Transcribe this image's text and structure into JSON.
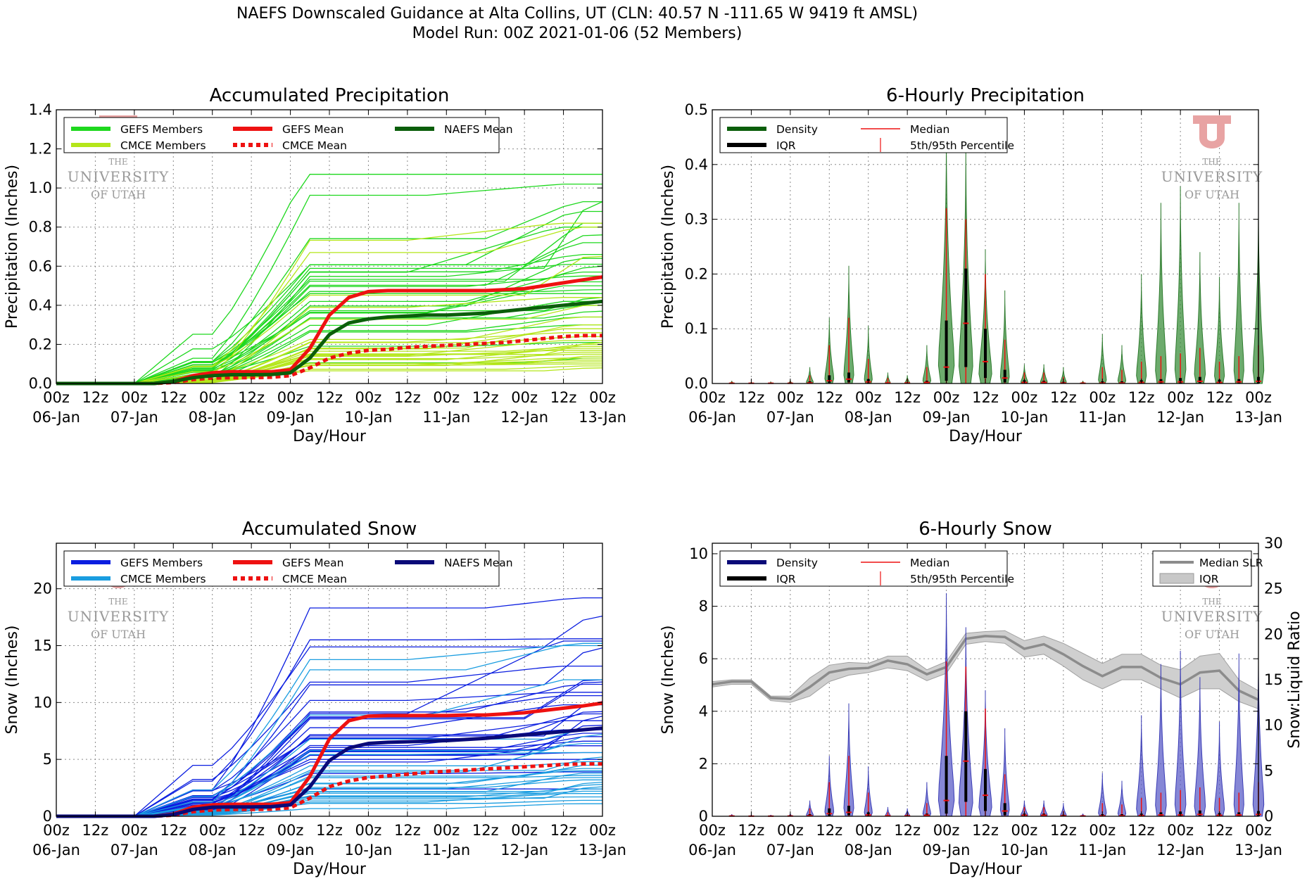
{
  "suptitle": {
    "line1": "NAEFS Downscaled Guidance at Alta Collins, UT (CLN: 40.57 N -111.65 W 9419 ft AMSL)",
    "line2": "Model Run: 00Z 2021-01-06 (52 Members)"
  },
  "watermark": {
    "line1": "THE",
    "line2": "UNIVERSITY",
    "line3": "OF UTAH"
  },
  "time_axis": {
    "hour_labels": [
      "00z",
      "12z",
      "00z",
      "12z",
      "00z",
      "12z",
      "00z",
      "12z",
      "00z",
      "12z",
      "00z",
      "12z",
      "00z",
      "12z",
      "00z"
    ],
    "day_labels": [
      "06-Jan",
      "",
      "07-Jan",
      "",
      "08-Jan",
      "",
      "09-Jan",
      "",
      "10-Jan",
      "",
      "11-Jan",
      "",
      "12-Jan",
      "",
      "13-Jan"
    ],
    "xlabel": "Day/Hour"
  },
  "colors": {
    "gefs_precip": "#1ed81e",
    "cmce_precip": "#b4e61a",
    "naefs_precip": "#0b5e0b",
    "gefs_snow": "#0b1ee0",
    "cmce_snow": "#1a9de0",
    "naefs_snow": "#0a0a78",
    "gefs_mean": "#ee1111",
    "violin_green": "#3c8f3c",
    "violin_blue": "#5d5fc8",
    "slr": "#8c8c8c"
  },
  "chart_data": [
    {
      "id": "acc_precip",
      "type": "line",
      "title": "Accumulated Precipitation",
      "xlabel": "Day/Hour",
      "ylabel": "Precipitation (Inches)",
      "ylim": [
        0,
        1.4
      ],
      "yticks": [
        "0.0",
        "0.2",
        "0.4",
        "0.6",
        "0.8",
        "1.0",
        "1.2",
        "1.4"
      ],
      "x_hours": [
        0,
        6,
        12,
        18,
        24,
        30,
        36,
        42,
        48,
        54,
        60,
        66,
        72,
        78,
        84,
        90,
        96,
        102,
        108,
        114,
        120,
        126,
        132,
        138,
        144,
        150,
        156,
        162,
        168
      ],
      "legend": [
        {
          "label": "GEFS Members",
          "color": "#1ed81e",
          "style": "solid"
        },
        {
          "label": "CMCE Members",
          "color": "#b4e61a",
          "style": "solid"
        },
        {
          "label": "GEFS Mean",
          "color": "#ee1111",
          "style": "solid"
        },
        {
          "label": "CMCE Mean",
          "color": "#ee1111",
          "style": "dotted"
        },
        {
          "label": "NAEFS Mean",
          "color": "#0b5e0b",
          "style": "solid"
        }
      ],
      "series": [
        {
          "name": "GEFS Mean",
          "style": "mean",
          "color": "#ee1111",
          "values": [
            0,
            0,
            0,
            0,
            0,
            0,
            0.01,
            0.04,
            0.055,
            0.06,
            0.06,
            0.06,
            0.07,
            0.18,
            0.35,
            0.44,
            0.47,
            0.475,
            0.475,
            0.475,
            0.475,
            0.475,
            0.475,
            0.48,
            0.485,
            0.5,
            0.515,
            0.53,
            0.545
          ]
        },
        {
          "name": "CMCE Mean",
          "style": "dotted",
          "color": "#ee1111",
          "values": [
            0,
            0,
            0,
            0,
            0,
            0,
            0.005,
            0.02,
            0.028,
            0.03,
            0.03,
            0.032,
            0.04,
            0.08,
            0.13,
            0.155,
            0.17,
            0.175,
            0.185,
            0.19,
            0.195,
            0.2,
            0.205,
            0.21,
            0.22,
            0.23,
            0.24,
            0.245,
            0.245
          ]
        },
        {
          "name": "NAEFS Mean",
          "style": "mean",
          "color": "#0b5e0b",
          "values": [
            0,
            0,
            0,
            0,
            0,
            0,
            0.01,
            0.03,
            0.04,
            0.045,
            0.045,
            0.046,
            0.055,
            0.13,
            0.25,
            0.31,
            0.33,
            0.34,
            0.345,
            0.35,
            0.35,
            0.355,
            0.36,
            0.37,
            0.38,
            0.39,
            0.4,
            0.41,
            0.42
          ]
        }
      ],
      "member_groups": [
        {
          "style": "gefs",
          "color": "#1ed81e",
          "finals": [
            1.07,
            1.02,
            0.93,
            0.93,
            0.88,
            0.82,
            0.8,
            0.76,
            0.72,
            0.66,
            0.64,
            0.61,
            0.6,
            0.57,
            0.55,
            0.52,
            0.5,
            0.48,
            0.46,
            0.44,
            0.42,
            0.4,
            0.37,
            0.34,
            0.3,
            0.21,
            0.13
          ]
        },
        {
          "style": "cmce",
          "color": "#b4e61a",
          "finals": [
            0.82,
            0.8,
            0.65,
            0.44,
            0.4,
            0.34,
            0.3,
            0.28,
            0.26,
            0.24,
            0.22,
            0.21,
            0.2,
            0.19,
            0.18,
            0.17,
            0.16,
            0.15,
            0.14,
            0.13,
            0.12,
            0.11,
            0.1,
            0.09,
            0.08
          ]
        }
      ]
    },
    {
      "id": "six_precip",
      "type": "violin",
      "title": "6-Hourly Precipitation",
      "xlabel": "Day/Hour",
      "ylabel": "Precipitation (Inches)",
      "ylim": [
        0,
        0.5
      ],
      "yticks": [
        "0.0",
        "0.1",
        "0.2",
        "0.3",
        "0.4",
        "0.5"
      ],
      "legend": [
        {
          "label": "Density",
          "color": "#0b5e0b",
          "style": "thick"
        },
        {
          "label": "IQR",
          "color": "#000000",
          "style": "thick"
        },
        {
          "label": "Median",
          "color": "#ee1111",
          "style": "thin"
        },
        {
          "label": "5th/95th Percentile",
          "color": "#ee1111",
          "style": "vertical"
        }
      ],
      "x_hours": [
        6,
        12,
        18,
        24,
        30,
        36,
        42,
        48,
        54,
        60,
        66,
        72,
        78,
        84,
        90,
        96,
        102,
        108,
        114,
        120,
        126,
        132,
        138,
        144,
        150,
        156,
        162,
        168
      ],
      "max": [
        0.005,
        0.003,
        0.003,
        0.006,
        0.03,
        0.12,
        0.215,
        0.105,
        0.02,
        0.015,
        0.07,
        0.46,
        0.44,
        0.245,
        0.17,
        0.035,
        0.035,
        0.03,
        0.005,
        0.09,
        0.07,
        0.2,
        0.33,
        0.36,
        0.24,
        0.195,
        0.33,
        0.33
      ],
      "p95": [
        0.003,
        0.002,
        0.002,
        0.004,
        0.015,
        0.07,
        0.12,
        0.045,
        0.01,
        0.008,
        0.03,
        0.32,
        0.3,
        0.2,
        0.08,
        0.02,
        0.02,
        0.012,
        0.003,
        0.03,
        0.025,
        0.04,
        0.05,
        0.055,
        0.065,
        0.04,
        0.05,
        0.07
      ],
      "q3": [
        0.001,
        0.001,
        0.001,
        0.001,
        0.004,
        0.015,
        0.02,
        0.008,
        0.002,
        0.002,
        0.005,
        0.115,
        0.21,
        0.1,
        0.025,
        0.006,
        0.005,
        0.003,
        0.001,
        0.004,
        0.004,
        0.006,
        0.008,
        0.01,
        0.012,
        0.007,
        0.008,
        0.012
      ],
      "median": [
        0.0005,
        0.0005,
        0.0005,
        0.0005,
        0.001,
        0.005,
        0.008,
        0.003,
        0.001,
        0.001,
        0.002,
        0.03,
        0.11,
        0.04,
        0.01,
        0.002,
        0.002,
        0.001,
        0.0005,
        0.001,
        0.001,
        0.002,
        0.003,
        0.003,
        0.004,
        0.002,
        0.003,
        0.004
      ],
      "q1": [
        0,
        0,
        0,
        0,
        0,
        0.001,
        0.002,
        0,
        0,
        0,
        0,
        0.005,
        0.03,
        0.01,
        0.002,
        0,
        0,
        0,
        0,
        0,
        0,
        0,
        0,
        0,
        0.001,
        0,
        0,
        0
      ],
      "width": [
        0.2,
        0.2,
        0.2,
        0.2,
        0.35,
        0.45,
        0.5,
        0.4,
        0.25,
        0.25,
        0.4,
        0.8,
        0.7,
        0.65,
        0.45,
        0.35,
        0.35,
        0.3,
        0.2,
        0.4,
        0.4,
        0.5,
        0.55,
        0.55,
        0.55,
        0.5,
        0.5,
        0.55
      ]
    },
    {
      "id": "acc_snow",
      "type": "line",
      "title": "Accumulated Snow",
      "xlabel": "Day/Hour",
      "ylabel": "Snow (Inches)",
      "ylim": [
        0,
        24
      ],
      "yticks": [
        "0",
        "5",
        "10",
        "15",
        "20"
      ],
      "ytick_values": [
        0,
        5,
        10,
        15,
        20
      ],
      "x_hours": [
        0,
        6,
        12,
        18,
        24,
        30,
        36,
        42,
        48,
        54,
        60,
        66,
        72,
        78,
        84,
        90,
        96,
        102,
        108,
        114,
        120,
        126,
        132,
        138,
        144,
        150,
        156,
        162,
        168
      ],
      "legend": [
        {
          "label": "GEFS Members",
          "color": "#0b1ee0",
          "style": "solid"
        },
        {
          "label": "CMCE Members",
          "color": "#1a9de0",
          "style": "solid"
        },
        {
          "label": "GEFS Mean",
          "color": "#ee1111",
          "style": "solid"
        },
        {
          "label": "CMCE Mean",
          "color": "#ee1111",
          "style": "dotted"
        },
        {
          "label": "NAEFS Mean",
          "color": "#0a0a78",
          "style": "solid"
        }
      ],
      "series": [
        {
          "name": "GEFS Mean",
          "style": "mean",
          "color": "#ee1111",
          "values": [
            0,
            0,
            0,
            0,
            0,
            0,
            0.2,
            0.8,
            1.0,
            1.05,
            1.05,
            1.05,
            1.2,
            3.5,
            6.8,
            8.4,
            8.8,
            8.85,
            8.85,
            8.85,
            8.85,
            8.9,
            8.9,
            9.0,
            9.1,
            9.3,
            9.5,
            9.7,
            9.95
          ]
        },
        {
          "name": "CMCE Mean",
          "style": "dotted",
          "color": "#ee1111",
          "values": [
            0,
            0,
            0,
            0,
            0,
            0,
            0.1,
            0.4,
            0.55,
            0.6,
            0.6,
            0.62,
            0.75,
            1.6,
            2.6,
            3.1,
            3.4,
            3.55,
            3.7,
            3.85,
            3.95,
            4.05,
            4.15,
            4.25,
            4.35,
            4.45,
            4.55,
            4.6,
            4.6
          ]
        },
        {
          "name": "NAEFS Mean",
          "style": "mean",
          "color": "#0a0a78",
          "values": [
            0,
            0,
            0,
            0,
            0,
            0,
            0.15,
            0.6,
            0.8,
            0.82,
            0.82,
            0.84,
            1.0,
            2.6,
            4.9,
            6.0,
            6.4,
            6.5,
            6.55,
            6.6,
            6.65,
            6.75,
            6.85,
            7.0,
            7.15,
            7.3,
            7.45,
            7.6,
            7.75
          ]
        }
      ],
      "member_groups": [
        {
          "style": "gefs",
          "color": "#0b1ee0",
          "finals": [
            19.2,
            17.6,
            15.6,
            15.4,
            14.8,
            13.2,
            12.0,
            11.8,
            11.6,
            10.9,
            10.6,
            10.1,
            9.8,
            9.2,
            9.0,
            8.8,
            8.4,
            8.0,
            7.6,
            7.3,
            7.0,
            6.6,
            6.2,
            5.6,
            5.0,
            3.9,
            2.4
          ]
        },
        {
          "style": "cmce",
          "color": "#1a9de0",
          "finals": [
            15.2,
            15.0,
            12.0,
            7.8,
            7.2,
            6.4,
            5.6,
            5.2,
            4.8,
            4.5,
            4.2,
            4.0,
            3.8,
            3.6,
            3.4,
            3.2,
            3.0,
            2.8,
            2.6,
            2.4,
            2.2,
            2.0,
            1.7,
            1.4,
            1.1
          ]
        }
      ]
    },
    {
      "id": "six_snow",
      "type": "violin",
      "title": "6-Hourly Snow",
      "xlabel": "Day/Hour",
      "ylabel": "Snow (Inches)",
      "ylabel_right": "Snow:Liquid Ratio",
      "ylim": [
        0,
        10.4
      ],
      "yticks": [
        "0",
        "2",
        "4",
        "6",
        "8",
        "10"
      ],
      "ytick_values": [
        0,
        2,
        4,
        6,
        8,
        10
      ],
      "ylim_right": [
        0,
        30
      ],
      "yticks_right": [
        "0",
        "5",
        "10",
        "15",
        "20",
        "25",
        "30"
      ],
      "legend": [
        {
          "label": "Density",
          "color": "#0a0a78",
          "style": "thick"
        },
        {
          "label": "IQR",
          "color": "#000000",
          "style": "thick"
        },
        {
          "label": "Median",
          "color": "#ee1111",
          "style": "thin"
        },
        {
          "label": "5th/95th Percentile",
          "color": "#ee1111",
          "style": "vertical"
        }
      ],
      "legend_right": [
        {
          "label": "Median SLR",
          "color": "#8c8c8c",
          "style": "thick"
        },
        {
          "label": "IQR",
          "color": "#c8c8c8",
          "style": "band"
        }
      ],
      "x_hours": [
        6,
        12,
        18,
        24,
        30,
        36,
        42,
        48,
        54,
        60,
        66,
        72,
        78,
        84,
        90,
        96,
        102,
        108,
        114,
        120,
        126,
        132,
        138,
        144,
        150,
        156,
        162,
        168
      ],
      "max": [
        0.08,
        0.05,
        0.05,
        0.1,
        0.6,
        2.3,
        4.3,
        1.9,
        0.35,
        0.3,
        1.3,
        8.5,
        7.2,
        4.8,
        3.35,
        0.6,
        0.6,
        0.5,
        0.1,
        1.65,
        1.35,
        3.85,
        5.8,
        6.3,
        5.3,
        3.6,
        6.2,
        6.2
      ],
      "p95": [
        0.05,
        0.03,
        0.03,
        0.06,
        0.3,
        1.3,
        2.3,
        0.9,
        0.15,
        0.12,
        0.5,
        5.9,
        5.7,
        4.1,
        1.6,
        0.35,
        0.35,
        0.2,
        0.05,
        0.5,
        0.45,
        0.7,
        0.9,
        1.0,
        1.1,
        0.7,
        0.9,
        1.3
      ],
      "q3": [
        0.02,
        0.01,
        0.01,
        0.02,
        0.08,
        0.3,
        0.4,
        0.15,
        0.04,
        0.04,
        0.1,
        2.3,
        4.0,
        1.8,
        0.5,
        0.1,
        0.1,
        0.06,
        0.02,
        0.08,
        0.08,
        0.1,
        0.15,
        0.18,
        0.22,
        0.12,
        0.15,
        0.2
      ],
      "median": [
        0.01,
        0.005,
        0.005,
        0.01,
        0.02,
        0.1,
        0.15,
        0.05,
        0.02,
        0.02,
        0.04,
        0.6,
        2.1,
        0.8,
        0.2,
        0.04,
        0.04,
        0.02,
        0.01,
        0.02,
        0.02,
        0.03,
        0.05,
        0.05,
        0.07,
        0.04,
        0.05,
        0.07
      ],
      "q1": [
        0,
        0,
        0,
        0,
        0,
        0.02,
        0.04,
        0,
        0,
        0,
        0,
        0.1,
        0.55,
        0.2,
        0.04,
        0,
        0,
        0,
        0,
        0,
        0,
        0,
        0,
        0,
        0.02,
        0,
        0,
        0
      ],
      "width": [
        0.2,
        0.2,
        0.2,
        0.2,
        0.35,
        0.45,
        0.5,
        0.4,
        0.25,
        0.25,
        0.4,
        0.8,
        0.7,
        0.65,
        0.45,
        0.35,
        0.35,
        0.3,
        0.2,
        0.4,
        0.4,
        0.5,
        0.55,
        0.55,
        0.55,
        0.5,
        0.5,
        0.55
      ],
      "slr": {
        "x_hours": [
          0,
          6,
          12,
          18,
          24,
          30,
          36,
          42,
          48,
          54,
          60,
          66,
          72,
          78,
          84,
          90,
          96,
          102,
          108,
          114,
          120,
          126,
          132,
          138,
          144,
          150,
          156,
          162,
          168
        ],
        "median": [
          14.5,
          14.8,
          14.8,
          13.0,
          12.9,
          14.2,
          15.8,
          16.2,
          16.3,
          17.1,
          16.7,
          15.6,
          16.4,
          19.5,
          19.8,
          19.7,
          18.4,
          18.9,
          17.8,
          16.5,
          15.4,
          16.4,
          16.4,
          15.2,
          14.5,
          15.8,
          16.0,
          13.8,
          12.8
        ],
        "q1": [
          14.2,
          14.5,
          14.5,
          12.7,
          12.5,
          13.2,
          14.8,
          15.5,
          15.8,
          16.3,
          16.0,
          14.9,
          15.7,
          18.9,
          19.2,
          19.0,
          17.5,
          17.8,
          16.5,
          15.0,
          14.0,
          15.0,
          15.0,
          14.0,
          13.0,
          14.0,
          14.0,
          12.6,
          11.8
        ],
        "q3": [
          14.8,
          15.0,
          15.0,
          13.2,
          13.2,
          15.2,
          16.6,
          16.9,
          16.8,
          17.6,
          17.6,
          16.1,
          17.0,
          20.1,
          20.3,
          20.4,
          19.3,
          19.8,
          19.0,
          17.9,
          16.8,
          17.8,
          17.8,
          16.6,
          16.1,
          17.6,
          17.9,
          15.0,
          13.8
        ]
      }
    }
  ]
}
